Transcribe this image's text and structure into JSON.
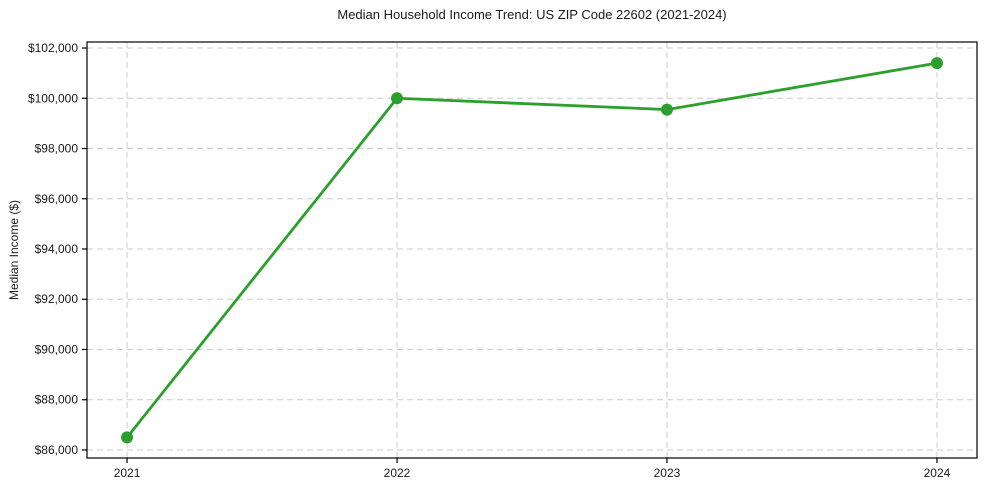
{
  "page": {
    "background": "#ffffff"
  },
  "chart_data": {
    "type": "line",
    "title": "Median Household Income Trend: US ZIP Code 22602 (2021-2024)",
    "xlabel": "",
    "ylabel": "Median Income ($)",
    "categories": [
      "2021",
      "2022",
      "2023",
      "2024"
    ],
    "values": [
      86500,
      100000,
      99550,
      101400
    ],
    "ylim": [
      85680,
      102240
    ],
    "yticks": [
      86000,
      88000,
      90000,
      92000,
      94000,
      96000,
      98000,
      100000,
      102000
    ],
    "ytick_labels": [
      "$86,000",
      "$88,000",
      "$90,000",
      "$92,000",
      "$94,000",
      "$96,000",
      "$98,000",
      "$100,000",
      "$102,000"
    ],
    "grid": {
      "visible": true,
      "style": "dashed",
      "color": "#cccccc"
    },
    "legend": "none",
    "line_color": "#2ca02c",
    "marker": "circle",
    "marker_size": 6,
    "line_width": 2.8,
    "text_color": "#1a1a1a",
    "axis_color": "#000000"
  }
}
